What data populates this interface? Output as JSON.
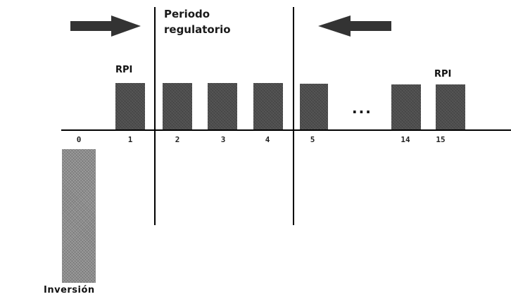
{
  "period": {
    "line1": "Periodo",
    "line2": "regulatorio"
  },
  "rpi_left": "RPI",
  "rpi_right": "RPI",
  "investment_label": "Inversión",
  "ellipsis": "...",
  "ticks": [
    "0",
    "1",
    "2",
    "3",
    "4",
    "5",
    "14",
    "15"
  ],
  "colors": {
    "bar": "#4d4d4d",
    "investment": "#8c8c8c",
    "arrow": "#333333"
  }
}
